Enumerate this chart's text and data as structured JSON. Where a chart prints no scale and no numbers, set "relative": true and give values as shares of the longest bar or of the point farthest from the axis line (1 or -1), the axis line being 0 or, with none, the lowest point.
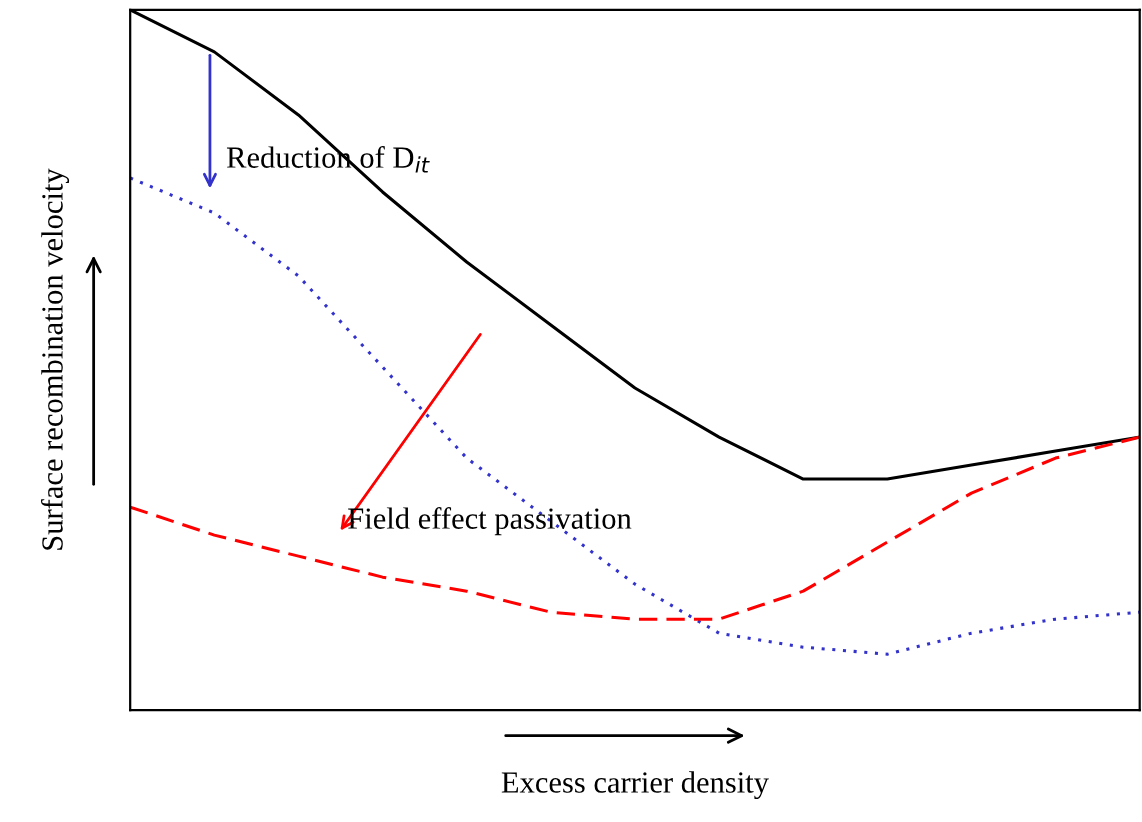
{
  "chart_data": {
    "type": "line",
    "relative": true,
    "xlabel": "Excess carrier density",
    "ylabel": "Surface recombination velocity",
    "categories": [
      null,
      null,
      null,
      null,
      null,
      null,
      null,
      null,
      null,
      null,
      null,
      null,
      null
    ],
    "series": [
      {
        "color": "#000000",
        "line_style": "solid",
        "values": [
          1.0,
          0.94,
          0.85,
          0.74,
          0.64,
          0.55,
          0.46,
          0.39,
          0.33,
          0.33,
          0.35,
          0.37,
          0.39
        ]
      },
      {
        "color": "#3333cc",
        "line_style": "dotted",
        "values": [
          0.76,
          0.71,
          0.62,
          0.49,
          0.36,
          0.27,
          0.18,
          0.11,
          0.09,
          0.08,
          0.11,
          0.13,
          0.14
        ]
      },
      {
        "color": "#ff0000",
        "line_style": "dashed",
        "values": [
          0.29,
          0.25,
          0.22,
          0.19,
          0.17,
          0.14,
          0.13,
          0.13,
          0.17,
          0.24,
          0.31,
          0.36,
          0.39
        ]
      }
    ],
    "annotations": [
      "Reduction of D$_{it}$",
      "Field effect passivation"
    ],
    "legend": false
  }
}
